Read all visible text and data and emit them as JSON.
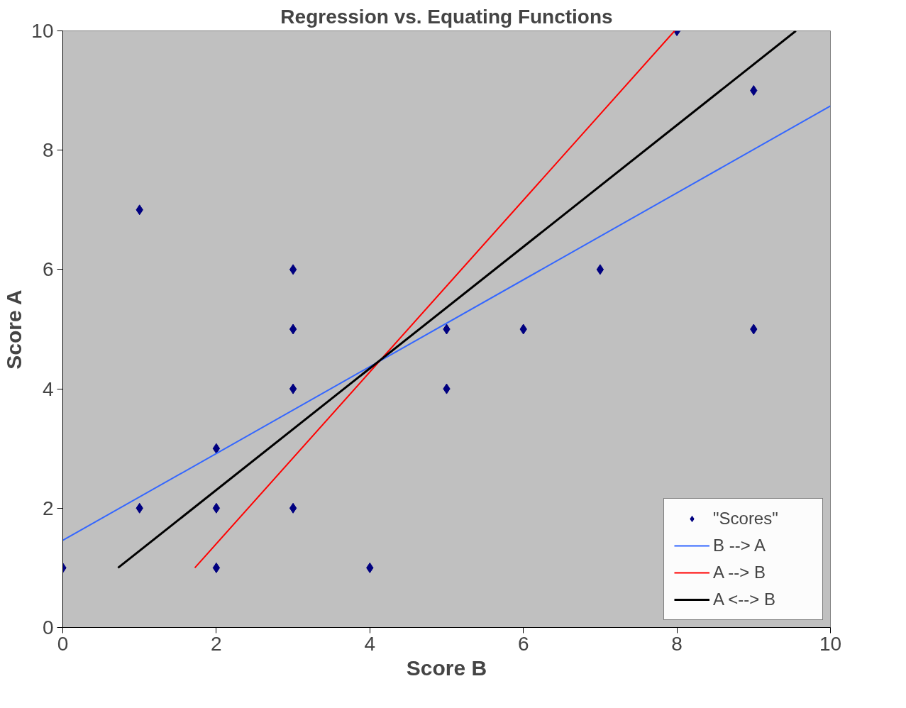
{
  "chart_data": {
    "type": "scatter",
    "title": "Regression vs. Equating Functions",
    "xlabel": "Score B",
    "ylabel": "Score A",
    "xlim": [
      0,
      10
    ],
    "ylim": [
      0,
      10
    ],
    "xticks": [
      0,
      2,
      4,
      6,
      8,
      10
    ],
    "yticks": [
      0,
      2,
      4,
      6,
      8,
      10
    ],
    "grid": false,
    "legend": "bottom right",
    "series": [
      {
        "name": "\"Scores\"",
        "marker": "diamond",
        "color": "#000080",
        "x": [
          0,
          1,
          1,
          2,
          2,
          2,
          3,
          3,
          3,
          3,
          4,
          5,
          5,
          6,
          7,
          8,
          9,
          9
        ],
        "values": [
          1,
          7,
          2,
          3,
          2,
          1,
          6,
          5,
          4,
          2,
          1,
          5,
          4,
          5,
          6,
          10,
          9,
          5
        ]
      },
      {
        "name": "B --> A",
        "type": "line",
        "color": "#3366ff",
        "x": [
          0,
          10
        ],
        "values": [
          1.46,
          8.74
        ]
      },
      {
        "name": "A --> B",
        "type": "line",
        "color": "#ff0000",
        "x": [
          1.72,
          7.97
        ],
        "values": [
          1,
          10
        ]
      },
      {
        "name": "A <--> B",
        "type": "line",
        "color": "#000000",
        "x": [
          0.72,
          9.55
        ],
        "values": [
          1,
          10
        ]
      }
    ]
  }
}
